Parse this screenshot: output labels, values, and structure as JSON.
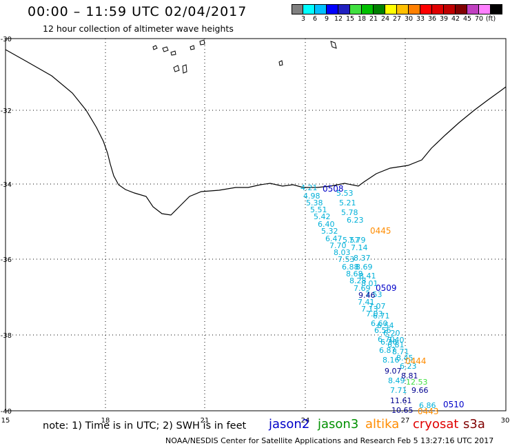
{
  "header": {
    "title": "00:00 – 11:59 UTC 02/04/2017",
    "subtitle": "12 hour collection of altimeter wave heights"
  },
  "color_scale": {
    "colors": [
      "#808080",
      "#00ffff",
      "#00c0ff",
      "#0000ff",
      "#2020c0",
      "#40e040",
      "#00c000",
      "#008000",
      "#ffff00",
      "#ffc000",
      "#ff8000",
      "#ff0000",
      "#e00000",
      "#c00000",
      "#800000",
      "#c040c0",
      "#ff80ff",
      "#000000"
    ],
    "labels": [
      "3",
      "6",
      "9",
      "12",
      "15",
      "18",
      "21",
      "24",
      "27",
      "30",
      "33",
      "36",
      "39",
      "42",
      "45",
      "70",
      "(ft)"
    ]
  },
  "axes": {
    "lon_ticks": [
      "15",
      "18",
      "21",
      "24",
      "27",
      "30"
    ],
    "lat_ticks": [
      "-30",
      "-32",
      "-34",
      "-36",
      "-38",
      "-40"
    ]
  },
  "times": [
    {
      "label": "0508",
      "color": "#0000c8"
    },
    {
      "label": "0445",
      "color": "#ff8c00"
    },
    {
      "label": "0509",
      "color": "#0000c8"
    },
    {
      "label": "0444",
      "color": "#ff8c00"
    },
    {
      "label": "0510",
      "color": "#0000c8"
    },
    {
      "label": "0443",
      "color": "#ff8c00"
    }
  ],
  "swh": {
    "cyan_color": "#00b0d8",
    "navy_color": "#000090",
    "green_color": "#40e040",
    "cyan_values": [
      "4.21",
      "4.98",
      "5.38",
      "5.51",
      "5.42",
      "6.40",
      "5.32",
      "6.47",
      "7.70",
      "8.03",
      "7.53",
      "6.88",
      "8.68",
      "8.28",
      "7.69",
      "7.41",
      "7.13",
      "7.03",
      "6.60",
      "6.56",
      "6.70",
      "6.36",
      "6.87",
      "8.16",
      "8.49",
      "7.71",
      "5.53",
      "5.21",
      "5.78",
      "5.57",
      "6.23",
      "7.79",
      "7.14",
      "8.37",
      "8.69",
      "8.41",
      "8.01",
      "7.53",
      "7.07",
      "6.71",
      "6.54",
      "6.20",
      "7.40",
      "8.71",
      "8.45",
      "6.23",
      "6.86",
      "6.81"
    ],
    "navy_values": [
      "9.46",
      "9.07",
      "11.61",
      "10.65",
      "8.81",
      "9.66"
    ],
    "green_values": [
      "12.53"
    ]
  },
  "footer": {
    "note": "note:  1) Time is in UTC;  2) SWH is in feet",
    "credit": "NOAA/NESDIS Center for Satellite Applications and Research    Feb  5 13:27:16 UTC 2017"
  },
  "legend": [
    {
      "label": "jason2",
      "color": "#0000c8"
    },
    {
      "label": "jason3",
      "color": "#009000"
    },
    {
      "label": "altika",
      "color": "#ff8c00"
    },
    {
      "label": "cryosat",
      "color": "#e00000"
    },
    {
      "label": "s3a",
      "color": "#800000"
    }
  ]
}
